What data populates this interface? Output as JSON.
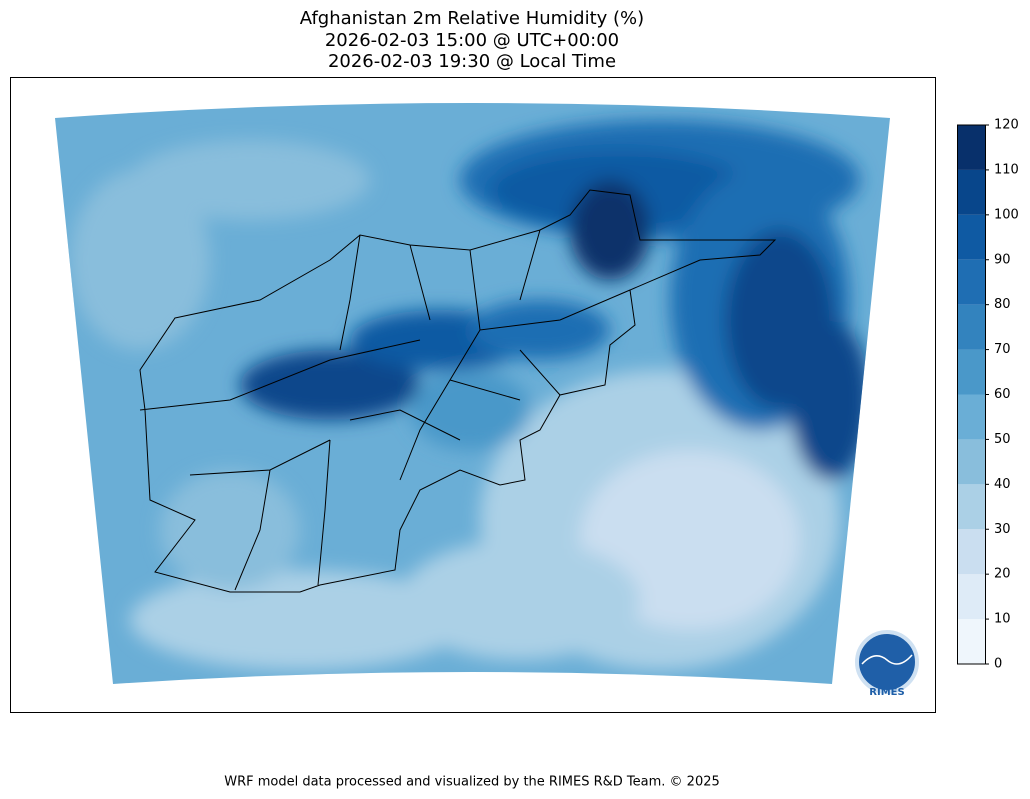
{
  "title": [
    "Afghanistan 2m Relative Humidity (%)",
    "2026-02-03 15:00 @ UTC+00:00",
    "2026-02-03 19:30 @ Local Time"
  ],
  "colorbar": {
    "ticks": [
      0,
      10,
      20,
      30,
      40,
      50,
      60,
      70,
      80,
      90,
      100,
      110,
      120
    ],
    "colors": [
      "#eff6fc",
      "#deebf7",
      "#cadef0",
      "#abd0e6",
      "#89bedc",
      "#6aaed6",
      "#4a98c9",
      "#3383be",
      "#1f6eb3",
      "#0f5aa3",
      "#08468b",
      "#08306b"
    ]
  },
  "logo": "RIMES",
  "footer": "WRF model data processed and visualized by the RIMES R&D Team. © 2025"
}
